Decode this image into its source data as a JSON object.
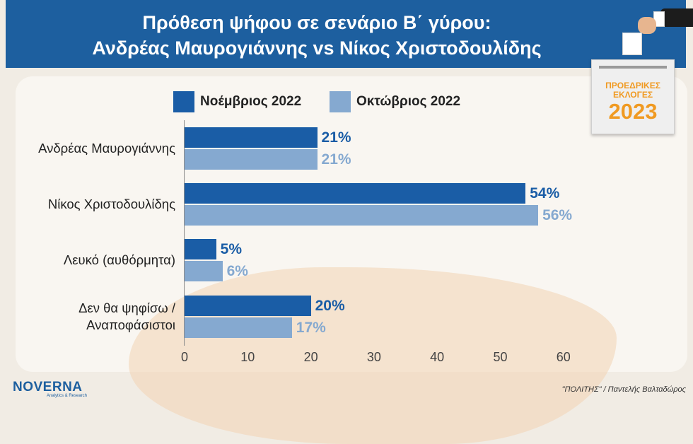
{
  "header": {
    "title_line1": "Πρόθεση ψήφου σε σενάριο Β΄ γύρου:",
    "title_line2": "Ανδρέας Μαυρογιάννης vs Νίκος Χριστοδουλίδης"
  },
  "badge": {
    "line1": "ΠΡΟΕΔΡΙΚΕΣ",
    "line2": "ΕΚΛΟΓΕΣ",
    "year": "2023"
  },
  "footer": {
    "logo": "NOVERNA",
    "logo_sub": "Analytics & Research",
    "source": "\"ΠΟΛΙΤΗΣ\" / Παντελής Βαλταδώρος"
  },
  "chart_data": {
    "type": "bar",
    "orientation": "horizontal",
    "categories": [
      "Ανδρέας Μαυρογιάννης",
      "Νίκος Χριστοδουλίδης",
      "Λευκό (αυθόρμητα)",
      "Δεν θα ψηφίσω / Αναποφάσιστοι"
    ],
    "series": [
      {
        "name": "Νοέμβριος 2022",
        "color": "#1a5da6",
        "values": [
          21,
          54,
          5,
          20
        ],
        "labels": [
          "21%",
          "54%",
          "5%",
          "20%"
        ]
      },
      {
        "name": "Οκτώβριος 2022",
        "color": "#85a9d0",
        "values": [
          21,
          56,
          6,
          17
        ],
        "labels": [
          "21%",
          "56%",
          "6%",
          "17%"
        ]
      }
    ],
    "xlim": [
      0,
      60
    ],
    "xticks": [
      "0",
      "10",
      "20",
      "30",
      "40",
      "50",
      "60"
    ],
    "grid": false,
    "legend_position": "top-left"
  }
}
